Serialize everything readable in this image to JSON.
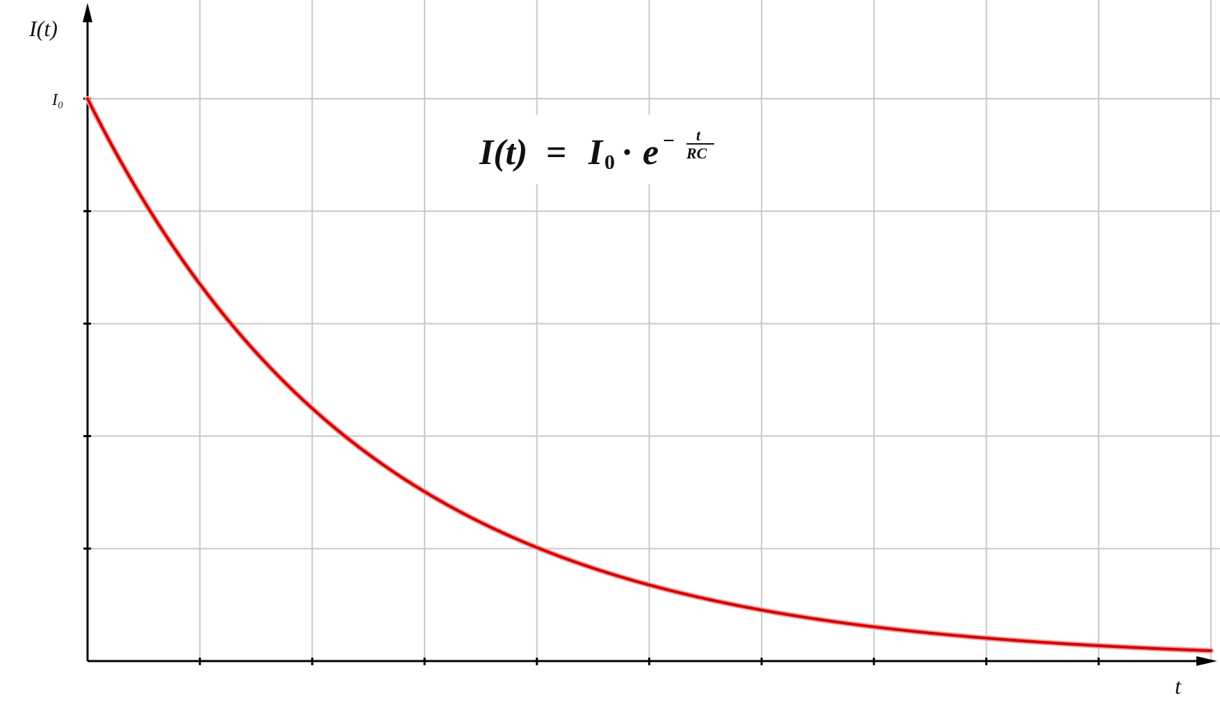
{
  "chart_data": {
    "type": "line",
    "title": "",
    "xlabel": "t",
    "ylabel": "I(t)",
    "y_tick_label_top": "I₀",
    "x_tick_count": 10,
    "y_tick_count": 5,
    "grid": true,
    "xlim": [
      0,
      10
    ],
    "ylim": [
      0,
      5
    ],
    "annotation": {
      "lhs": "I(t)",
      "equals": "=",
      "base": "I",
      "base_sub": "0",
      "dot": "·",
      "exp_base": "e",
      "exp_sign": "−",
      "exp_num": "t",
      "exp_den": "RC"
    },
    "series": [
      {
        "color": "#d40000",
        "function": "I0*exp(-t/RC)",
        "params": {
          "I0": 5,
          "RC": 2.5
        },
        "x_range": [
          0,
          10
        ]
      }
    ]
  },
  "colors": {
    "curve": "#d40000",
    "grid": "#c8c8c8",
    "axis": "#000000"
  }
}
